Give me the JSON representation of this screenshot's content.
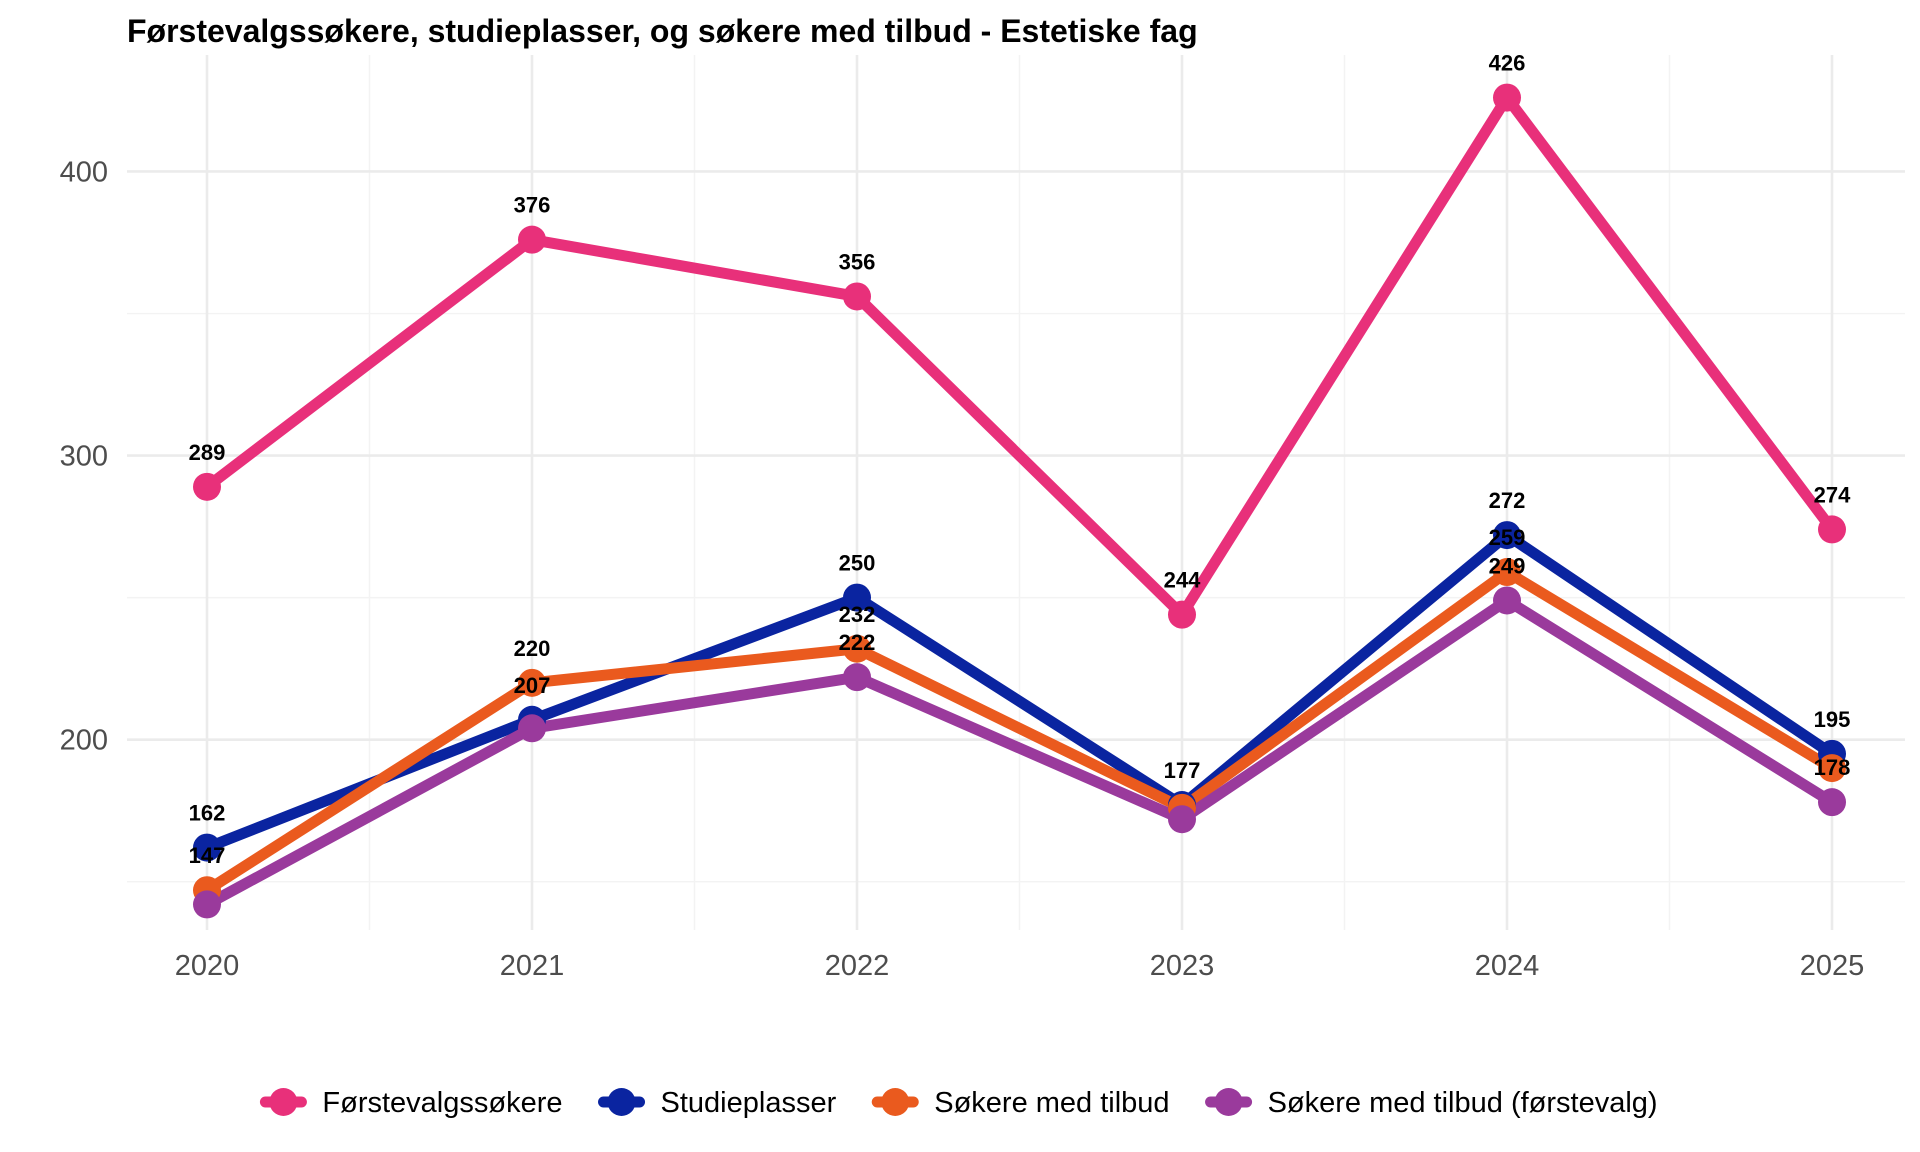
{
  "chart_data": {
    "type": "line",
    "title": "Førstevalgssøkere, studieplasser, og søkere med tilbud - Estetiske fag",
    "xlabel": "",
    "ylabel": "",
    "x": [
      2020,
      2021,
      2022,
      2023,
      2024,
      2025
    ],
    "x_tick_labels": [
      "2020",
      "2021",
      "2022",
      "2023",
      "2024",
      "2025"
    ],
    "y_ticks": [
      200,
      300,
      400
    ],
    "y_tick_labels": [
      "200",
      "300",
      "400"
    ],
    "ylim": [
      133,
      441
    ],
    "grid": true,
    "legend_position": "bottom",
    "series": [
      {
        "name": "Førstevalgssøkere",
        "color": "#E8307A",
        "values": [
          289,
          376,
          356,
          244,
          426,
          274
        ]
      },
      {
        "name": "Studieplasser",
        "color": "#0A24A0",
        "values": [
          162,
          207,
          250,
          177,
          272,
          195
        ]
      },
      {
        "name": "Søkere med tilbud",
        "color": "#EA5A1E",
        "values": [
          147,
          220,
          232,
          176,
          259,
          190
        ]
      },
      {
        "name": "Søkere med tilbud (førstevalg)",
        "color": "#9A3A9C",
        "values": [
          142,
          204,
          222,
          172,
          249,
          178
        ]
      }
    ],
    "data_labels": [
      {
        "series": 0,
        "index": 0,
        "text": "289"
      },
      {
        "series": 0,
        "index": 1,
        "text": "376"
      },
      {
        "series": 0,
        "index": 2,
        "text": "356"
      },
      {
        "series": 0,
        "index": 3,
        "text": "244"
      },
      {
        "series": 0,
        "index": 4,
        "text": "426"
      },
      {
        "series": 0,
        "index": 5,
        "text": "274"
      },
      {
        "series": 1,
        "index": 0,
        "text": "162"
      },
      {
        "series": 1,
        "index": 1,
        "text": "207"
      },
      {
        "series": 1,
        "index": 2,
        "text": "250"
      },
      {
        "series": 1,
        "index": 3,
        "text": "177"
      },
      {
        "series": 1,
        "index": 4,
        "text": "272"
      },
      {
        "series": 1,
        "index": 5,
        "text": "195"
      },
      {
        "series": 2,
        "index": 0,
        "text": "147"
      },
      {
        "series": 2,
        "index": 1,
        "text": "220"
      },
      {
        "series": 2,
        "index": 2,
        "text": "232"
      },
      {
        "series": 2,
        "index": 4,
        "text": "259"
      },
      {
        "series": 3,
        "index": 2,
        "text": "222"
      },
      {
        "series": 3,
        "index": 4,
        "text": "249"
      },
      {
        "series": 3,
        "index": 5,
        "text": "178"
      }
    ]
  }
}
